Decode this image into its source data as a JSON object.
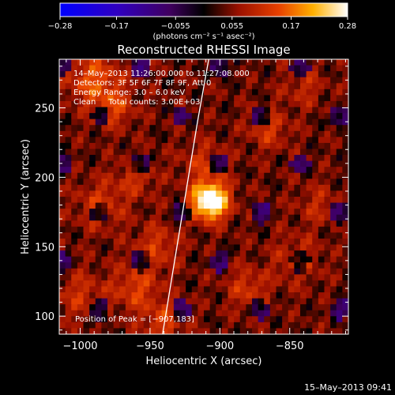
{
  "chart_data": {
    "type": "heatmap",
    "title": "Reconstructed RHESSI Image",
    "xlabel": "Heliocentric X (arcsec)",
    "ylabel": "Heliocentric Y (arcsec)",
    "xlim": [
      -1015,
      -808
    ],
    "ylim": [
      87,
      285
    ],
    "xticks": [
      -1000,
      -950,
      -900,
      -850
    ],
    "xtick_labels": [
      "−1000",
      "−950",
      "−900",
      "−850"
    ],
    "yticks": [
      100,
      150,
      200,
      250
    ],
    "ytick_labels": [
      "100",
      "150",
      "200",
      "250"
    ],
    "colorbar": {
      "min": -0.28,
      "max": 0.28,
      "ticks": [
        -0.28,
        -0.17,
        -0.055,
        0.055,
        0.17,
        0.28
      ],
      "tick_labels": [
        "−0.28",
        "−0.17",
        "−0.055",
        "0.055",
        "0.17",
        "0.28"
      ],
      "units_label": "(photons cm⁻² s⁻¹ asec⁻²)"
    },
    "info_lines": [
      "14–May–2013 11:26:00.000 to 11:27:08.000",
      "Detectors: 3F 5F 6F 7F 8F 9F, Att 0",
      "Energy Range: 3.0 – 6.0 keV",
      "Clean     Total counts: 3.00E+03"
    ],
    "peak_label": "Position of Peak = [−907,183]",
    "peak": {
      "x": -907,
      "y": 183,
      "value": 0.28
    },
    "limb_curve": [
      [
        -941,
        87
      ],
      [
        -934,
        130
      ],
      [
        -925,
        185
      ],
      [
        -916,
        240
      ],
      [
        -908,
        285
      ]
    ],
    "sources": [
      {
        "x": -907,
        "y": 183,
        "sigma": 9,
        "amp": 0.3
      },
      {
        "x": -912,
        "y": 210,
        "sigma": 11,
        "amp": 0.06
      },
      {
        "x": -990,
        "y": 270,
        "sigma": 13,
        "amp": 0.1
      },
      {
        "x": -975,
        "y": 250,
        "sigma": 10,
        "amp": 0.07
      },
      {
        "x": -960,
        "y": 200,
        "sigma": 10,
        "amp": 0.06
      },
      {
        "x": -985,
        "y": 180,
        "sigma": 12,
        "amp": 0.07
      },
      {
        "x": -945,
        "y": 150,
        "sigma": 11,
        "amp": 0.07
      },
      {
        "x": -960,
        "y": 120,
        "sigma": 12,
        "amp": 0.08
      },
      {
        "x": -1000,
        "y": 115,
        "sigma": 12,
        "amp": 0.06
      },
      {
        "x": -880,
        "y": 120,
        "sigma": 10,
        "amp": 0.07
      },
      {
        "x": -865,
        "y": 235,
        "sigma": 10,
        "amp": 0.07
      },
      {
        "x": -845,
        "y": 140,
        "sigma": 12,
        "amp": 0.06
      },
      {
        "x": -830,
        "y": 180,
        "sigma": 10,
        "amp": 0.05
      },
      {
        "x": -840,
        "y": 265,
        "sigma": 10,
        "amp": 0.05
      },
      {
        "x": -940,
        "y": 95,
        "sigma": 10,
        "amp": 0.08
      }
    ]
  },
  "timestamp": "15–May–2013 09:41"
}
